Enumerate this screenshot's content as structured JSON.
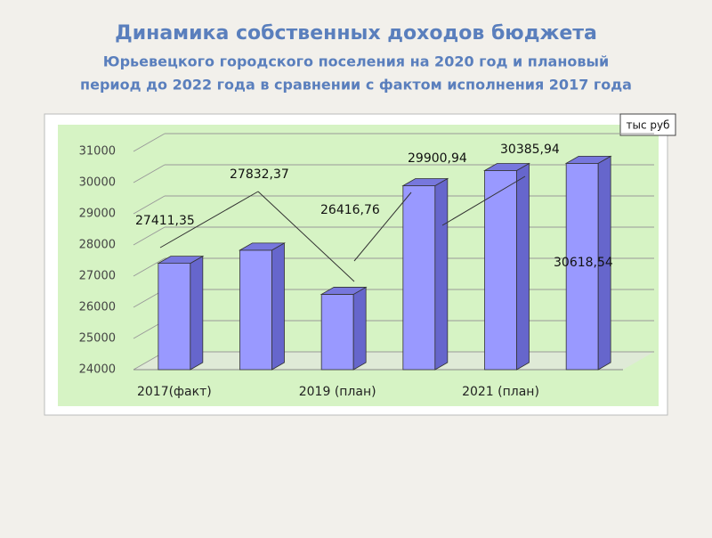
{
  "chart_data": {
    "type": "bar",
    "title": "Динамика собственных доходов бюджета",
    "subtitle": [
      "Юрьевецкого городского поселения на 2020 год и плановый",
      "период до 2022 года в сравнении с фактом исполнения 2017 года"
    ],
    "unit_note": "тыс руб",
    "categories": [
      "2017(факт)",
      null,
      "2019 (план)",
      null,
      "2021 (план)",
      null
    ],
    "values": [
      27411.35,
      27832.37,
      26416.76,
      29900.94,
      30385.94,
      30618.54
    ],
    "value_labels": [
      "27411,35",
      "27832,37",
      "26416,76",
      "29900,94",
      "30385,94",
      "30618,54"
    ],
    "color": "#9999ff",
    "ylim": [
      24000,
      31000
    ],
    "yticks": [
      24000,
      25000,
      26000,
      27000,
      28000,
      29000,
      30000,
      31000
    ],
    "grid": true
  }
}
